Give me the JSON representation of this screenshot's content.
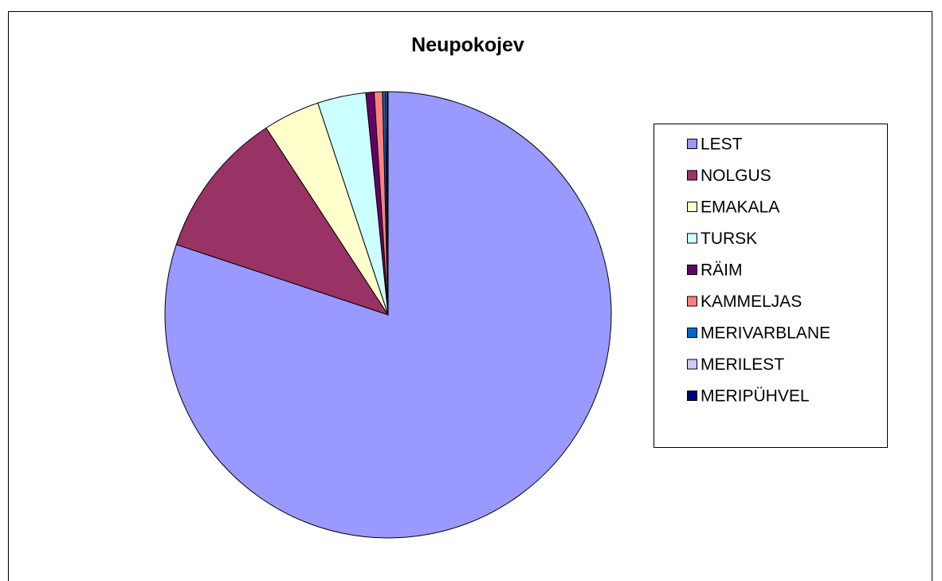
{
  "chart_data": {
    "type": "pie",
    "title": "Neupokojev",
    "categories": [
      "LEST",
      "NOLGUS",
      "EMAKALA",
      "TURSK",
      "RÄIM",
      "KAMMELJAS",
      "MERIVARBLANE",
      "MERILEST",
      "MERIPÜHVEL"
    ],
    "values": [
      80.1,
      10.7,
      4.1,
      3.5,
      0.6,
      0.6,
      0.2,
      0.1,
      0.1
    ],
    "colors": [
      "#9999ff",
      "#993366",
      "#ffffcc",
      "#ccffff",
      "#660066",
      "#ff8080",
      "#0066cc",
      "#ccccff",
      "#000080"
    ],
    "legend": "right"
  }
}
